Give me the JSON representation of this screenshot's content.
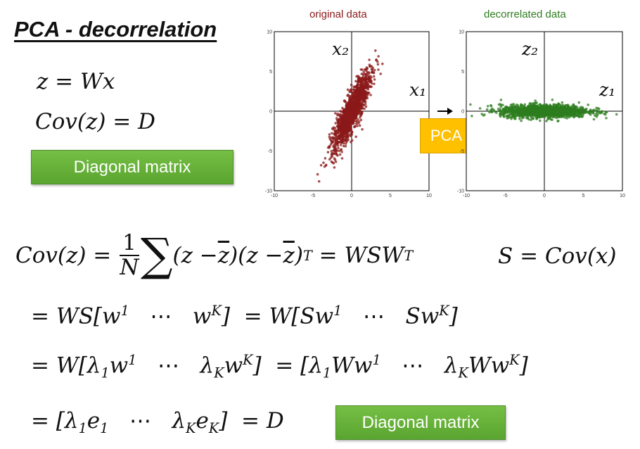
{
  "title": "PCA - decorrelation",
  "left_equations": {
    "eq1": "z = Wx",
    "eq2": "Cov(z) = D"
  },
  "badges": {
    "top": "Diagonal matrix",
    "bottom": "Diagonal matrix"
  },
  "pca_label": "PCA",
  "plots": {
    "original": {
      "title": "original data",
      "color": "#8b1a1a",
      "x_axis_label": "x₁",
      "y_axis_label": "x₂"
    },
    "decorrelated": {
      "title": "decorrelated data",
      "color": "#2e7d1f",
      "x_axis_label": "z₁",
      "y_axis_label": "z₂"
    }
  },
  "chart_data": [
    {
      "type": "scatter",
      "title": "original data",
      "xlim": [
        -10,
        10
      ],
      "ylim": [
        -10,
        10
      ],
      "x_ticks": [
        "-10",
        "-5",
        "0",
        "5",
        "10"
      ],
      "y_ticks": [
        "10",
        "5",
        "0",
        "-5",
        "-10"
      ],
      "cloud": {
        "center": [
          0,
          0
        ],
        "std_major": 2.6,
        "std_minor": 0.55,
        "angle_deg": 65
      }
    },
    {
      "type": "scatter",
      "title": "decorrelated data",
      "xlim": [
        -10,
        10
      ],
      "ylim": [
        -10,
        10
      ],
      "x_ticks": [
        "-10",
        "-5",
        "0",
        "5",
        "10"
      ],
      "y_ticks": [
        "10",
        "5",
        "0",
        "-5",
        "-10"
      ],
      "cloud": {
        "center": [
          0,
          0
        ],
        "std_major": 2.8,
        "std_minor": 0.4,
        "angle_deg": 0
      }
    }
  ]
}
